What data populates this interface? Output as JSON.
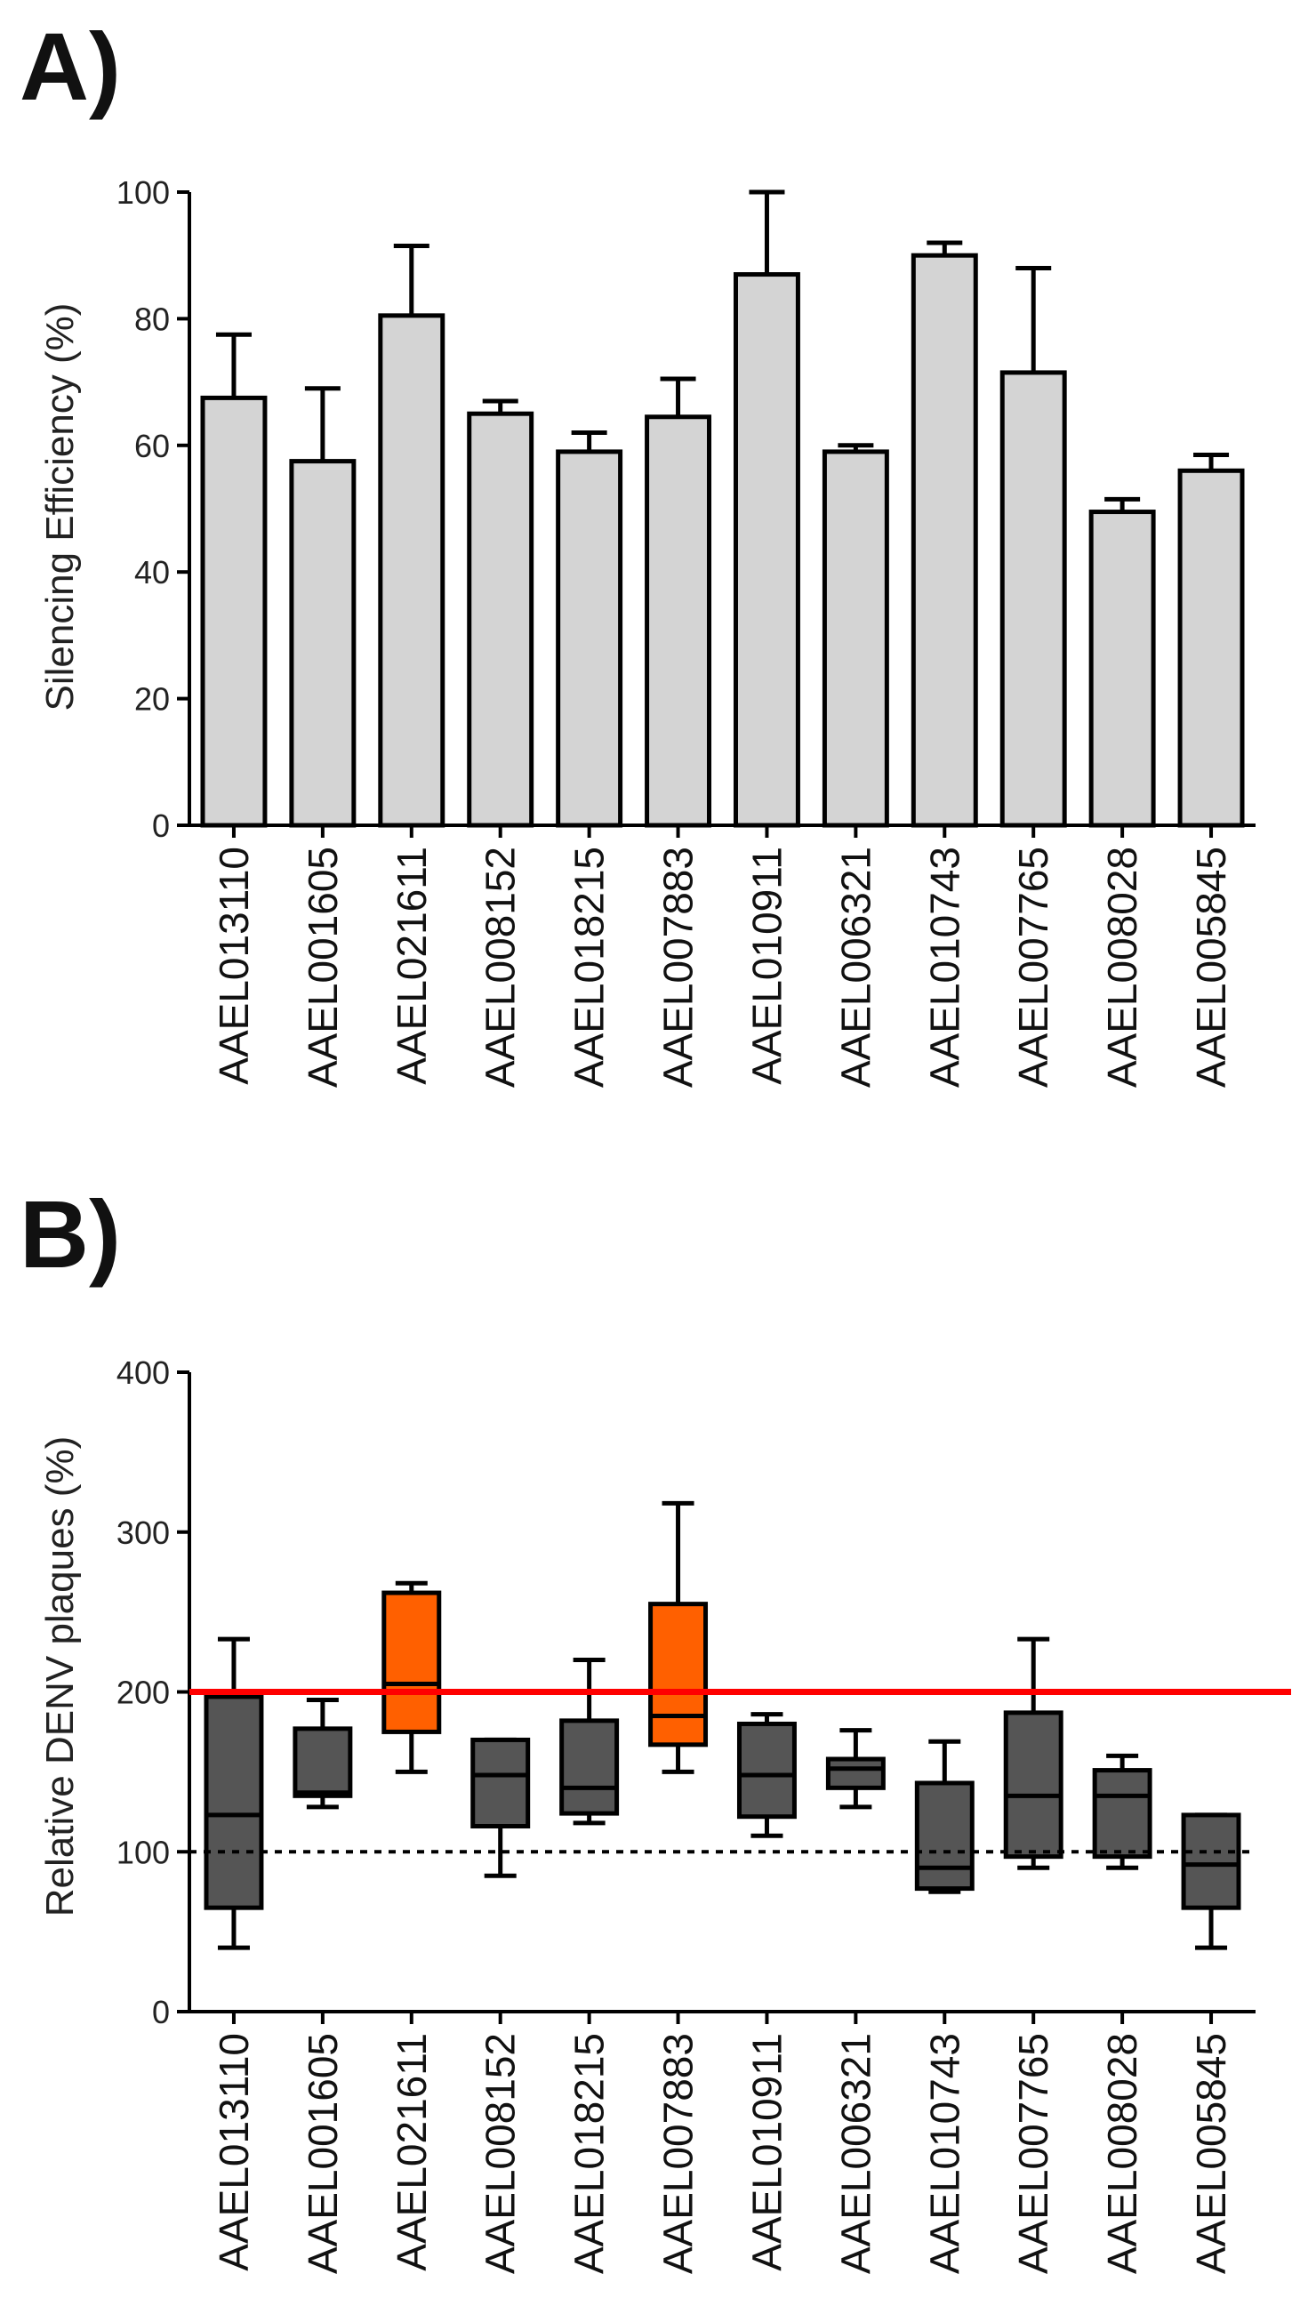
{
  "figure": {
    "panels": [
      "A)",
      "B)"
    ]
  },
  "chart_data": [
    {
      "id": "A",
      "type": "bar",
      "panel_label": "A)",
      "title": "",
      "xlabel": "",
      "ylabel": "Silencing Efficiency (%)",
      "ylim": [
        0,
        100
      ],
      "yticks": [
        0,
        20,
        40,
        60,
        80,
        100
      ],
      "ytick_labels": [
        "0",
        "20",
        "40",
        "60",
        "80",
        "100"
      ],
      "categories": [
        "AAEL013110",
        "AAEL001605",
        "AAEL021611",
        "AAEL008152",
        "AAEL018215",
        "AAEL007883",
        "AAEL010911",
        "AAEL006321",
        "AAEL010743",
        "AAEL007765",
        "AAEL008028",
        "AAEL005845"
      ],
      "values": [
        67.5,
        57.5,
        80.5,
        65,
        59,
        64.5,
        87,
        59,
        90,
        71.5,
        49.5,
        56
      ],
      "error_upper": [
        77.5,
        69,
        91.5,
        67,
        62,
        70.5,
        100,
        60,
        92,
        88,
        51.5,
        58.5
      ],
      "bar_color": "#d4d4d4",
      "edge_color": "#000000"
    },
    {
      "id": "B",
      "type": "box",
      "panel_label": "B)",
      "title": "",
      "xlabel": "",
      "ylabel": "Relative DENV plaques (%)",
      "ylim": [
        0,
        400
      ],
      "yticks": [
        0,
        100,
        200,
        300,
        400
      ],
      "ytick_labels": [
        "0",
        "100",
        "200",
        "300",
        "400"
      ],
      "categories": [
        "AAEL013110",
        "AAEL001605",
        "AAEL021611",
        "AAEL008152",
        "AAEL018215",
        "AAEL007883",
        "AAEL010911",
        "AAEL006321",
        "AAEL010743",
        "AAEL007765",
        "AAEL008028",
        "AAEL005845"
      ],
      "boxes": [
        {
          "min": 40,
          "q1": 65,
          "median": 123,
          "q3": 197,
          "max": 233
        },
        {
          "min": 128,
          "q1": 135,
          "median": 137,
          "q3": 177,
          "max": 195
        },
        {
          "min": 150,
          "q1": 175,
          "median": 205,
          "q3": 262,
          "max": 268
        },
        {
          "min": 85,
          "q1": 116,
          "median": 148,
          "q3": 170,
          "max": 170
        },
        {
          "min": 118,
          "q1": 124,
          "median": 140,
          "q3": 182,
          "max": 220
        },
        {
          "min": 150,
          "q1": 167,
          "median": 185,
          "q3": 255,
          "max": 318
        },
        {
          "min": 110,
          "q1": 122,
          "median": 148,
          "q3": 180,
          "max": 186
        },
        {
          "min": 128,
          "q1": 140,
          "median": 152,
          "q3": 158,
          "max": 176
        },
        {
          "min": 75,
          "q1": 77,
          "median": 90,
          "q3": 143,
          "max": 169
        },
        {
          "min": 90,
          "q1": 97,
          "median": 135,
          "q3": 187,
          "max": 233
        },
        {
          "min": 90,
          "q1": 97,
          "median": 135,
          "q3": 151,
          "max": 160
        },
        {
          "min": 40,
          "q1": 65,
          "median": 92,
          "q3": 123,
          "max": 123
        }
      ],
      "highlighted": [
        2,
        5
      ],
      "box_color": "#555555",
      "highlight_color": "#ff6000",
      "reference_lines": [
        {
          "value": 200,
          "style": "solid",
          "color": "#ff0000"
        },
        {
          "value": 100,
          "style": "dotted",
          "color": "#000000"
        }
      ]
    }
  ]
}
